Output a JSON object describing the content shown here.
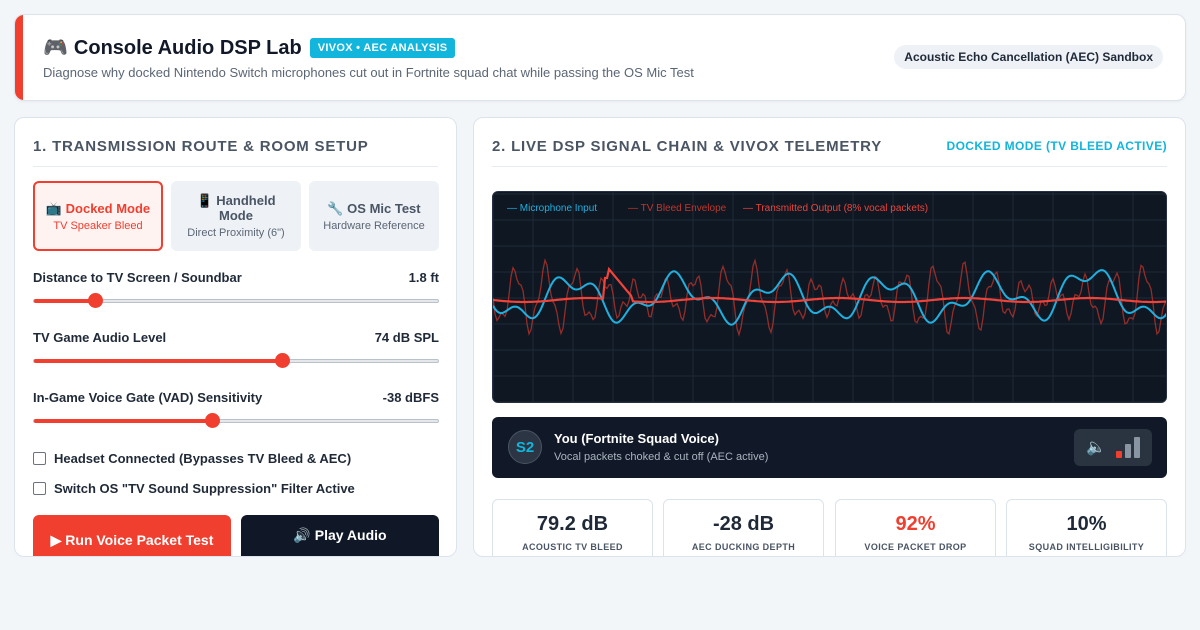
{
  "header": {
    "icon": "gamepad-icon",
    "icon_glyph": "🎮",
    "title": "Console Audio DSP Lab",
    "badge": "VIVOX • AEC ANALYSIS",
    "subtitle": "Diagnose why docked Nintendo Switch microphones cut out in Fortnite squad chat while passing the OS Mic Test",
    "sandbox_label": "Acoustic Echo Cancellation (AEC) Sandbox"
  },
  "setup_panel": {
    "title": "1. Transmission Route & Room Setup",
    "modes": [
      {
        "icon": "tv-icon",
        "glyph": "📺",
        "name": "Docked Mode",
        "desc": "TV Speaker Bleed",
        "active": true
      },
      {
        "icon": "phone-icon",
        "glyph": "📱",
        "name": "Handheld Mode",
        "desc": "Direct Proximity (6\")",
        "active": false
      },
      {
        "icon": "wrench-icon",
        "glyph": "🔧",
        "name": "OS Mic Test",
        "desc": "Hardware Reference",
        "active": false
      }
    ],
    "sliders": [
      {
        "label": "Distance to TV Screen / Soundbar",
        "value": "1.8 ft",
        "fraction": 0.15
      },
      {
        "label": "TV Game Audio Level",
        "value": "74 dB SPL",
        "fraction": 0.615
      },
      {
        "label": "In-Game Voice Gate (VAD) Sensitivity",
        "value": "-38 dBFS",
        "fraction": 0.44
      }
    ],
    "checkboxes": [
      {
        "label": "Headset Connected (Bypasses TV Bleed & AEC)",
        "checked": false
      },
      {
        "label": "Switch OS \"TV Sound Suppression\" Filter Active",
        "checked": false
      }
    ],
    "run_button": "▶ Run Voice Packet Test",
    "play_button": "🔊 Play Audio"
  },
  "telemetry_panel": {
    "title": "2. Live DSP Signal Chain & Vivox Telemetry",
    "mode_status": "DOCKED MODE (TV BLEED ACTIVE)",
    "legend": [
      {
        "label": "— Microphone Input",
        "color": "#1fb0e0"
      },
      {
        "label": "— TV Bleed Envelope",
        "color": "#c0362c"
      },
      {
        "label": "— Transmitted Output (8% vocal packets)",
        "color": "#f0433a"
      }
    ],
    "voice": {
      "avatar": "S2",
      "name": "You (Fortnite Squad Voice)",
      "status": "Vocal packets choked & cut off (AEC active)",
      "icon": "speaker-icon",
      "icon_glyph": "🔈",
      "level_fraction": 0.33
    },
    "metrics": [
      {
        "value": "79.2 dB",
        "label": "ACOUSTIC TV BLEED",
        "alert": false
      },
      {
        "value": "-28 dB",
        "label": "AEC DUCKING DEPTH",
        "alert": false
      },
      {
        "value": "92%",
        "label": "VOICE PACKET DROP",
        "alert": true
      },
      {
        "value": "10%",
        "label": "SQUAD INTELLIGIBILITY",
        "alert": false
      }
    ]
  }
}
